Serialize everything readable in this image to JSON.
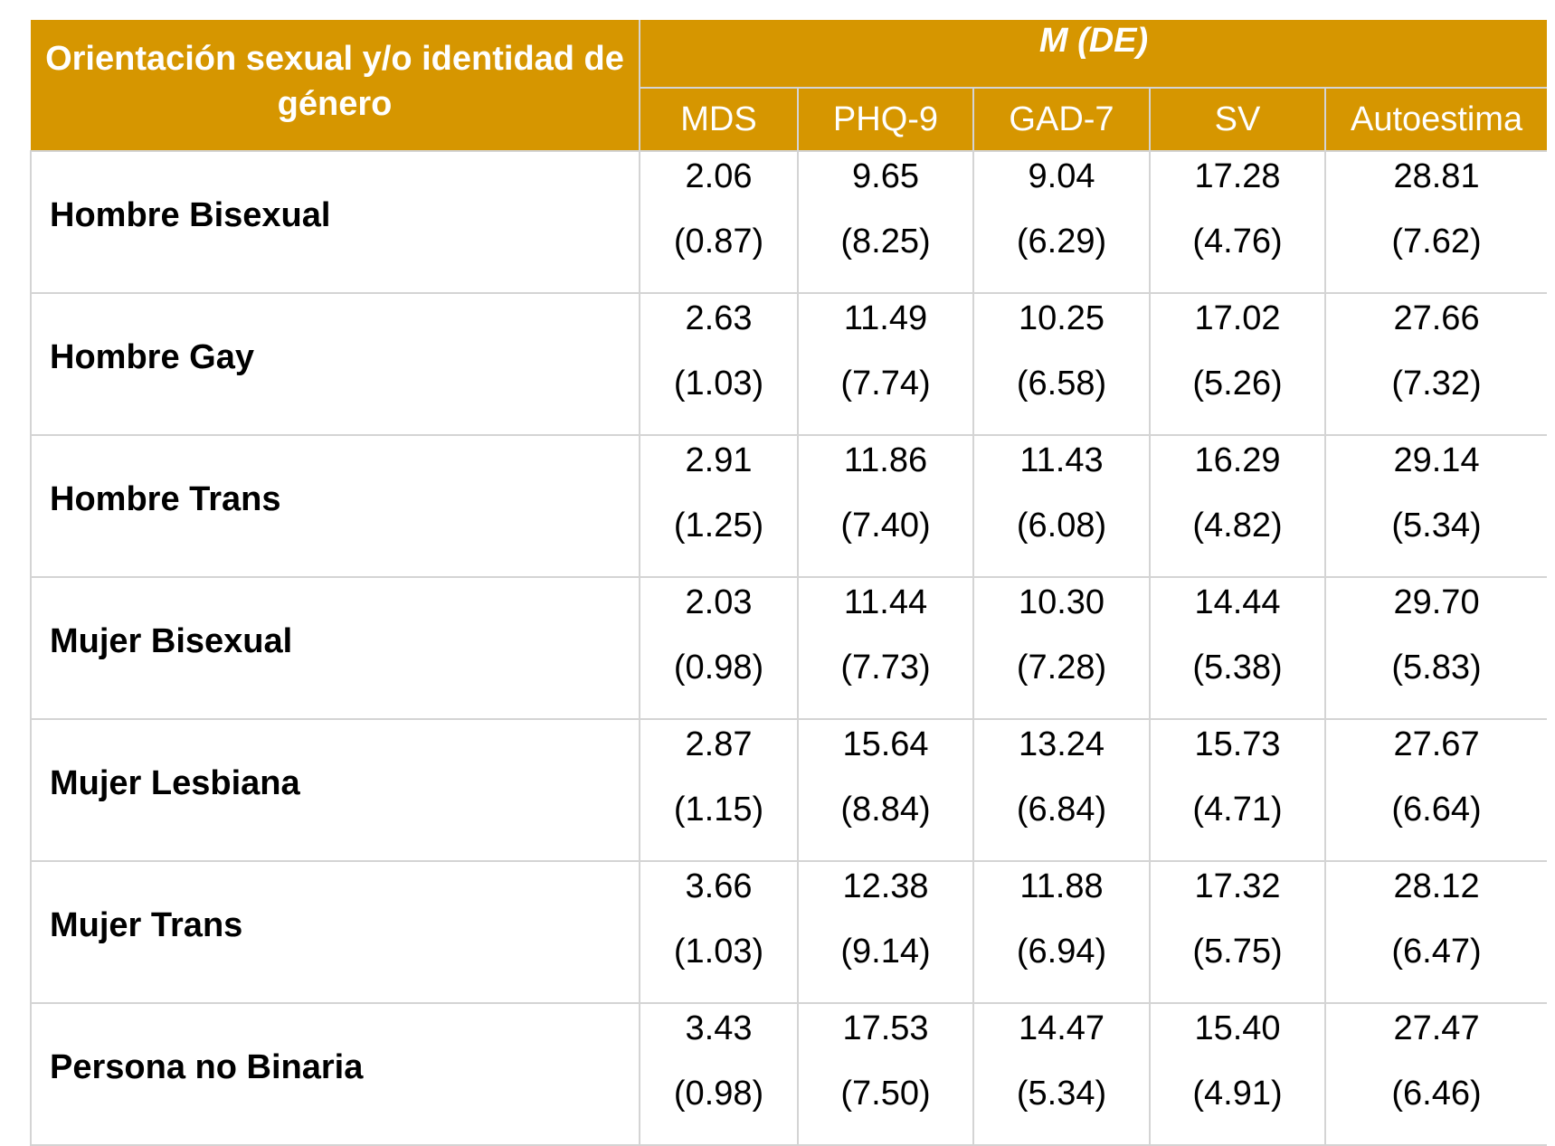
{
  "table": {
    "row_header_title": "Orientación sexual y/o identidad de género",
    "group_header": "M (DE)",
    "columns": [
      "MDS",
      "PHQ-9",
      "GAD-7",
      "SV",
      "Autoestima"
    ],
    "rows": [
      {
        "label": "Hombre Bisexual",
        "values": [
          {
            "mean": "2.06",
            "sd": "(0.87)"
          },
          {
            "mean": "9.65",
            "sd": "(8.25)"
          },
          {
            "mean": "9.04",
            "sd": "(6.29)"
          },
          {
            "mean": "17.28",
            "sd": "(4.76)"
          },
          {
            "mean": "28.81",
            "sd": "(7.62)"
          }
        ]
      },
      {
        "label": "Hombre Gay",
        "values": [
          {
            "mean": "2.63",
            "sd": "(1.03)"
          },
          {
            "mean": "11.49",
            "sd": "(7.74)"
          },
          {
            "mean": "10.25",
            "sd": "(6.58)"
          },
          {
            "mean": "17.02",
            "sd": "(5.26)"
          },
          {
            "mean": "27.66",
            "sd": "(7.32)"
          }
        ]
      },
      {
        "label": "Hombre Trans",
        "values": [
          {
            "mean": "2.91",
            "sd": "(1.25)"
          },
          {
            "mean": "11.86",
            "sd": "(7.40)"
          },
          {
            "mean": "11.43",
            "sd": "(6.08)"
          },
          {
            "mean": "16.29",
            "sd": "(4.82)"
          },
          {
            "mean": "29.14",
            "sd": "(5.34)"
          }
        ]
      },
      {
        "label": "Mujer Bisexual",
        "values": [
          {
            "mean": "2.03",
            "sd": "(0.98)"
          },
          {
            "mean": "11.44",
            "sd": "(7.73)"
          },
          {
            "mean": "10.30",
            "sd": "(7.28)"
          },
          {
            "mean": "14.44",
            "sd": "(5.38)"
          },
          {
            "mean": "29.70",
            "sd": "(5.83)"
          }
        ]
      },
      {
        "label": "Mujer Lesbiana",
        "values": [
          {
            "mean": "2.87",
            "sd": "(1.15)"
          },
          {
            "mean": "15.64",
            "sd": "(8.84)"
          },
          {
            "mean": "13.24",
            "sd": "(6.84)"
          },
          {
            "mean": "15.73",
            "sd": "(4.71)"
          },
          {
            "mean": "27.67",
            "sd": "(6.64)"
          }
        ]
      },
      {
        "label": "Mujer Trans",
        "values": [
          {
            "mean": "3.66",
            "sd": "(1.03)"
          },
          {
            "mean": "12.38",
            "sd": "(9.14)"
          },
          {
            "mean": "11.88",
            "sd": "(6.94)"
          },
          {
            "mean": "17.32",
            "sd": "(5.75)"
          },
          {
            "mean": "28.12",
            "sd": "(6.47)"
          }
        ]
      },
      {
        "label": "Persona no Binaria",
        "values": [
          {
            "mean": "3.43",
            "sd": "(0.98)"
          },
          {
            "mean": "17.53",
            "sd": "(7.50)"
          },
          {
            "mean": "14.47",
            "sd": "(5.34)"
          },
          {
            "mean": "15.40",
            "sd": "(4.91)"
          },
          {
            "mean": "27.47",
            "sd": "(6.46)"
          }
        ]
      }
    ]
  },
  "colors": {
    "header_background": "#d69600",
    "header_text": "#ffffff",
    "grid_line": "#d4d4d4",
    "body_text": "#000000"
  }
}
